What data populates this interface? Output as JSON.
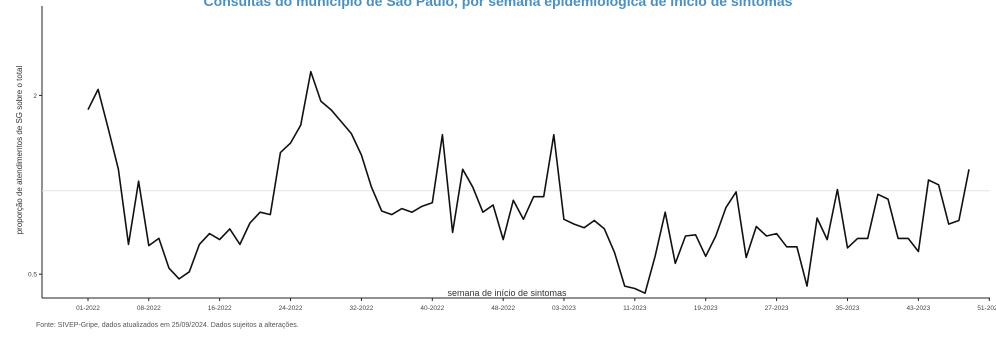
{
  "chart_data": {
    "type": "line",
    "title": "Consultas do município de São Paulo, por semana epidemiológica de início de sintomas",
    "xlabel": "semana de início de sintomas",
    "ylabel": "proporção de atendimentos de SG sobre o total",
    "ylim": [
      0.3,
      2.75
    ],
    "yticks": [
      0.5,
      2.0
    ],
    "ytick_labels": [
      "0.5",
      "2"
    ],
    "reference_line": 1.2,
    "grid": false,
    "x_tick_labels": [
      "01-2022",
      "08-2022",
      "16-2022",
      "24-2022",
      "32-2022",
      "40-2022",
      "48-2022",
      "03-2023",
      "11-2023",
      "19-2023",
      "27-2023",
      "35-2023",
      "43-2023",
      "51-2023"
    ],
    "x_tick_index": [
      0,
      6,
      13,
      20,
      27,
      34,
      41,
      47,
      54,
      61,
      68,
      75,
      82,
      89
    ],
    "series": [
      {
        "values": [
          1.88,
          2.05,
          1.72,
          1.38,
          0.75,
          1.28,
          0.74,
          0.8,
          0.55,
          0.46,
          0.52,
          0.75,
          0.84,
          0.79,
          0.88,
          0.75,
          0.93,
          1.02,
          1.0,
          1.52,
          1.6,
          1.75,
          2.2,
          1.95,
          1.88,
          1.78,
          1.68,
          1.5,
          1.23,
          1.03,
          1.0,
          1.05,
          1.02,
          1.07,
          1.1,
          1.67,
          0.85,
          1.38,
          1.23,
          1.02,
          1.08,
          0.79,
          1.12,
          0.96,
          1.15,
          1.15,
          1.67,
          0.96,
          0.92,
          0.89,
          0.95,
          0.88,
          0.68,
          0.4,
          0.38,
          0.34,
          0.65,
          1.02,
          0.59,
          0.82,
          0.83,
          0.65,
          0.82,
          1.06,
          1.19,
          0.64,
          0.9,
          0.82,
          0.84,
          0.73,
          0.73,
          0.4,
          0.97,
          0.79,
          1.21,
          0.72,
          0.8,
          0.8,
          1.17,
          1.13,
          0.8,
          0.8,
          0.69,
          1.29,
          1.25,
          0.92,
          0.95,
          1.38
        ]
      }
    ]
  },
  "footnote": "Fonte: SIVEP-Gripe, dados atualizados em 25/09/2024. Dados sujeitos a alterações."
}
